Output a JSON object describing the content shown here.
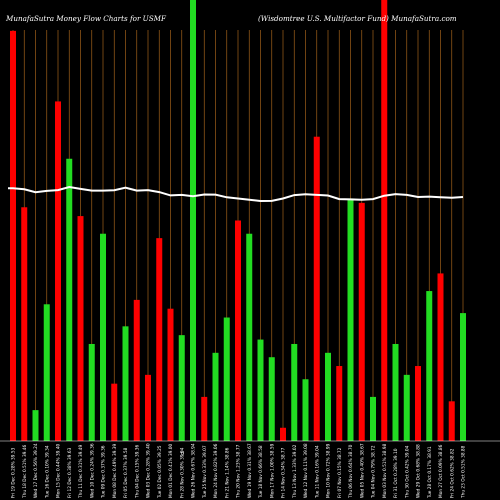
{
  "chart_data": {
    "type": "bar",
    "title_left": "MunafaSutra  Money Flow  Charts for USMF",
    "title_right": "(Wisdomtree   U.S. Multifactor Fund)  MunafaSutra.com",
    "zero_label": "0",
    "colors": {
      "background": "#000000",
      "up": "#22dd22",
      "down": "#ff0000",
      "gridline": "#a0601a",
      "price_line": "#ffffff",
      "text": "#ffffff"
    },
    "grid": "vertical",
    "ylim": [
      0,
      100
    ],
    "categories": [
      "Fri 19 Dec 0.28% 39.53",
      "Thu 18 Dec 0.51% 39.46",
      "Wed 17 Dec 0.56% 39.24",
      "Tue 16 Dec 0.10% 39.34",
      "Mon 15 Dec 0.44% 39.40",
      "Fri 12 Dec 0.38% 39.63",
      "Thu 11 Dec 0.31% 39.49",
      "Wed 10 Dec 0.24% 39.36",
      "Tue 09 Dec 0.37% 39.36",
      "Mon 08 Dec 0.49% 39.39",
      "Fri 05 Dec 0.37% 39.58",
      "Thu 04 Dec 0.15% 39.36",
      "Wed 03 Dec 0.28% 39.40",
      "Tue 02 Dec 0.05% 39.25",
      "Mon 01 Dec 0.41% 39.00",
      "Fri 28 Nov 0.30% 39.04",
      "Wed 26 Nov 0.67% 38.94",
      "Tue 25 Nov 0.33% 39.07",
      "Mon 24 Nov 0.82% 39.06",
      "Fri 21 Nov 1.14% 38.86",
      "Thu 20 Nov 1.23% 38.77",
      "Wed 19 Nov 0.31% 38.67",
      "Tue 18 Nov 0.66% 38.58",
      "Mon 17 Nov 1.00% 38.59",
      "Fri 14 Nov 0.34% 38.77",
      "Thu 13 Nov 1.33% 39.02",
      "Wed 12 Nov 0.11% 39.08",
      "Tue 11 Nov 0.16% 39.04",
      "Mon 10 Nov 0.72% 38.99",
      "Fri 07 Nov 0.15% 38.72",
      "Thu 06 Nov 0.64% 38.70",
      "Wed 05 Nov 0.40% 38.67",
      "Tue 04 Nov 0.79% 38.72",
      "Mon 03 Nov 0.51% 38.98",
      "Fri 31 Oct 0.28% 39.10",
      "Thu 30 Oct 0.42% 39.04",
      "Wed 29 Oct 0.68% 38.88",
      "Tue 28 Oct 0.17% 38.91",
      "Mon 27 Oct 0.09% 38.86",
      "Fri 24 Oct 0.62% 38.82",
      "Thu 23 Oct 0.51% 38.88"
    ],
    "directions": [
      "down",
      "down",
      "up",
      "up",
      "down",
      "up",
      "down",
      "up",
      "up",
      "down",
      "up",
      "down",
      "down",
      "down",
      "down",
      "up",
      "up",
      "down",
      "up",
      "up",
      "down",
      "up",
      "up",
      "up",
      "down",
      "up",
      "up",
      "down",
      "up",
      "down",
      "up",
      "down",
      "up",
      "down",
      "up",
      "up",
      "down",
      "up",
      "down",
      "down",
      "up"
    ],
    "values": [
      93,
      53,
      7,
      31,
      77,
      64,
      51,
      22,
      47,
      13,
      26,
      32,
      15,
      46,
      30,
      24,
      100,
      10,
      20,
      28,
      50,
      47,
      23,
      19,
      3,
      22,
      14,
      69,
      20,
      17,
      55,
      54,
      10,
      100,
      22,
      15,
      17,
      34,
      38,
      9,
      29
    ],
    "price_line": [
      39.53,
      39.46,
      39.24,
      39.34,
      39.4,
      39.63,
      39.49,
      39.36,
      39.36,
      39.39,
      39.58,
      39.36,
      39.4,
      39.25,
      39.0,
      39.04,
      38.94,
      39.07,
      39.06,
      38.86,
      38.77,
      38.67,
      38.58,
      38.59,
      38.77,
      39.02,
      39.08,
      39.04,
      38.99,
      38.72,
      38.7,
      38.67,
      38.72,
      38.98,
      39.1,
      39.04,
      38.88,
      38.91,
      38.86,
      38.82,
      38.88
    ]
  }
}
